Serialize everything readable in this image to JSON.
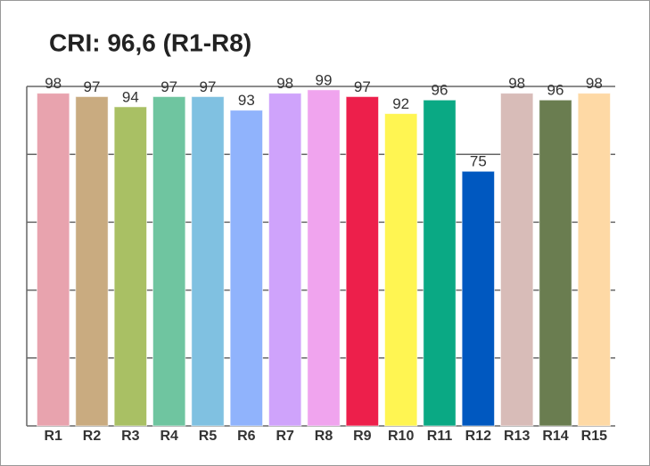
{
  "chart_data": {
    "type": "bar",
    "title": "CRI: 96,6 (R1-R8)",
    "categories": [
      "R1",
      "R2",
      "R3",
      "R4",
      "R5",
      "R6",
      "R7",
      "R8",
      "R9",
      "R10",
      "R11",
      "R12",
      "R13",
      "R14",
      "R15"
    ],
    "values": [
      98,
      97,
      94,
      97,
      97,
      93,
      98,
      99,
      97,
      92,
      96,
      75,
      98,
      96,
      98
    ],
    "colors": [
      "#e8a3ae",
      "#c9ab80",
      "#a9c064",
      "#6fc5a0",
      "#80c1e1",
      "#90b3fc",
      "#cfa3fb",
      "#f0a4ee",
      "#ed1f4b",
      "#fff552",
      "#0aa984",
      "#0058c0",
      "#d8bcb8",
      "#6a7d50",
      "#fed9a5"
    ],
    "ylim": [
      0,
      100
    ],
    "yticks": [
      0,
      20,
      40,
      60,
      80,
      100
    ],
    "grid": true
  }
}
